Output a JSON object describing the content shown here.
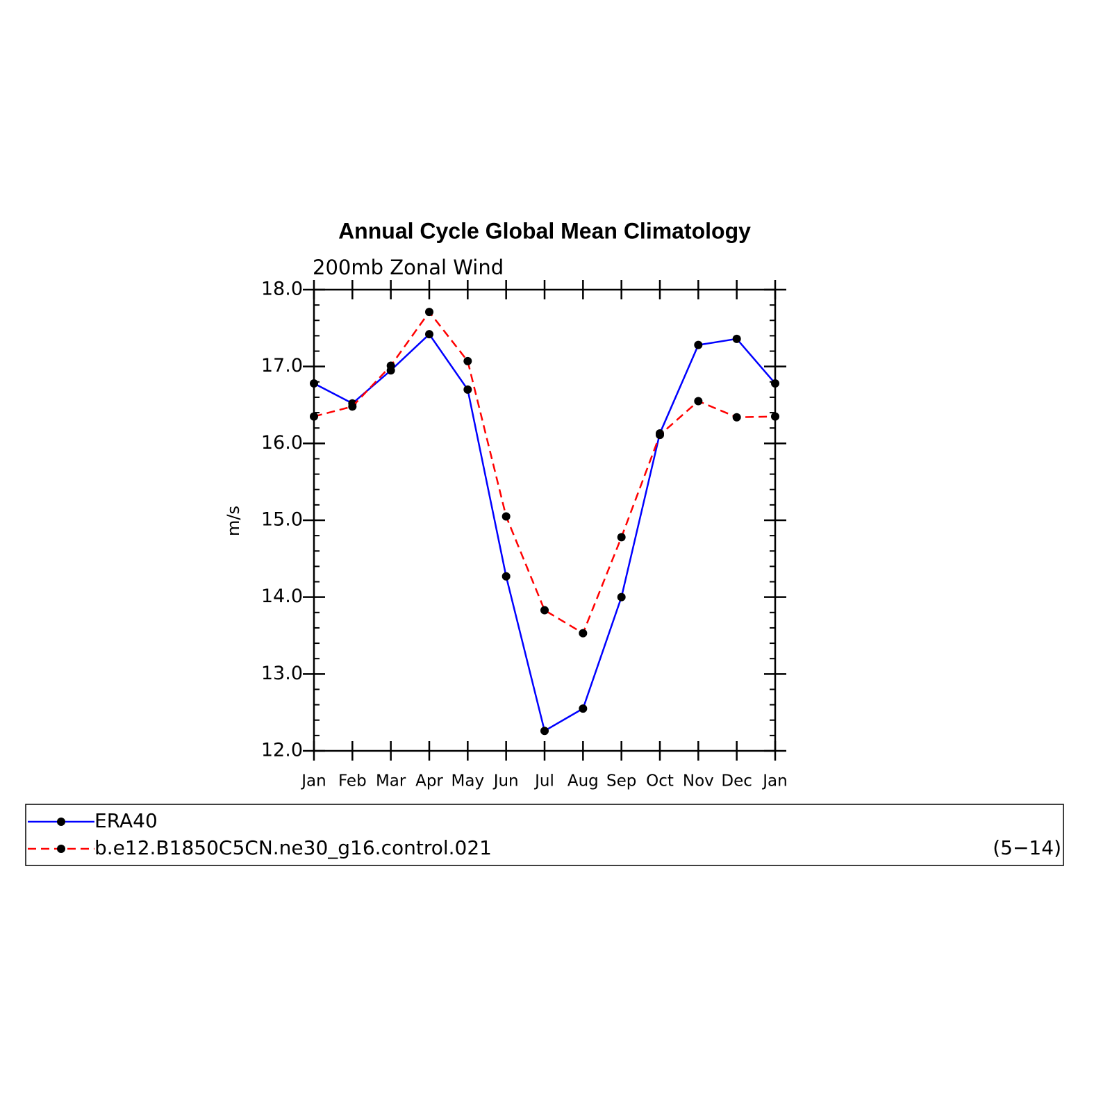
{
  "chart_data": {
    "type": "line",
    "title": "Annual Cycle Global Mean Climatology",
    "subtitle": "200mb Zonal Wind",
    "y_label": "m/s",
    "annotation": "(5−14)",
    "categories": [
      "Jan",
      "Feb",
      "Mar",
      "Apr",
      "May",
      "Jun",
      "Jul",
      "Aug",
      "Sep",
      "Oct",
      "Nov",
      "Dec",
      "Jan"
    ],
    "series": [
      {
        "name": "ERA40",
        "color": "#0000ff",
        "dash": false,
        "values": [
          16.78,
          16.52,
          16.95,
          17.42,
          16.7,
          14.27,
          12.26,
          12.55,
          14.0,
          16.13,
          17.28,
          17.36,
          16.78
        ]
      },
      {
        "name": "b.e12.B1850C5CN.ne30_g16.control.021",
        "color": "#ff0000",
        "dash": true,
        "values": [
          16.35,
          16.48,
          17.01,
          17.71,
          17.07,
          15.05,
          13.83,
          13.53,
          14.78,
          16.11,
          16.55,
          16.34,
          16.35
        ]
      }
    ],
    "ylim": [
      12,
      18
    ],
    "yticks": [
      {
        "value": 12,
        "label": "12.0"
      },
      {
        "value": 13,
        "label": "13.0"
      },
      {
        "value": 14,
        "label": "14.0"
      },
      {
        "value": 15,
        "label": "15.0"
      },
      {
        "value": 16,
        "label": "16.0"
      },
      {
        "value": 17,
        "label": "17.0"
      },
      {
        "value": 18,
        "label": "18.0"
      }
    ],
    "marker_color": "#000000"
  }
}
